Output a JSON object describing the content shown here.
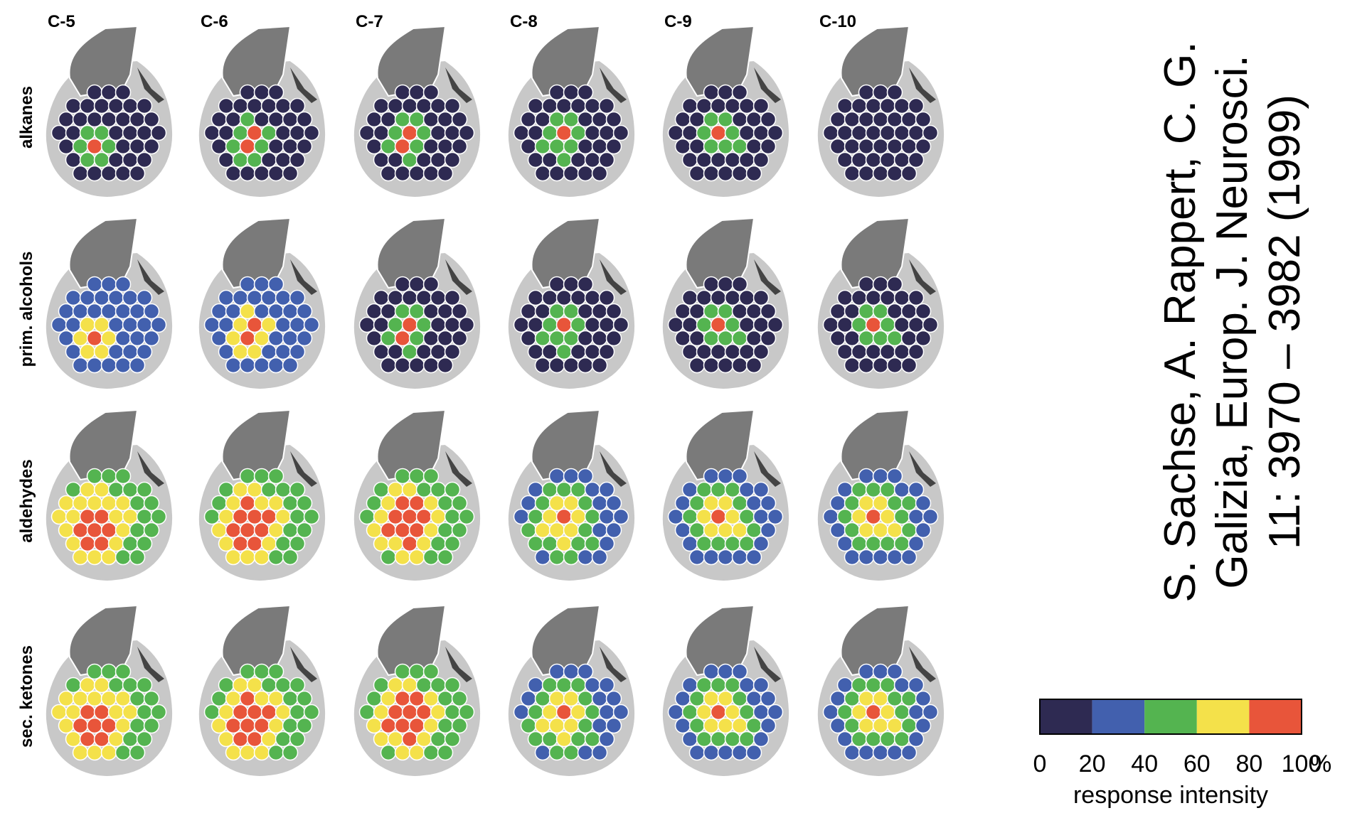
{
  "columns": [
    "C-5",
    "C-6",
    "C-7",
    "C-8",
    "C-9",
    "C-10"
  ],
  "rows": [
    "alkanes",
    "prim. alcohols",
    "aldehydes",
    "sec. ketones"
  ],
  "colorbar": {
    "ticks": [
      0,
      20,
      40,
      60,
      80,
      100
    ],
    "unit": "%",
    "label": "response intensity",
    "colors": [
      "#2e2a52",
      "#4260ae",
      "#54b450",
      "#f4e14a",
      "#e8553a"
    ]
  },
  "citation": [
    "S. Sachse, A. Rappert, C. G.",
    "Galizia, Europ. J. Neurosci.",
    "11: 3970 – 3982 (1999)"
  ]
}
